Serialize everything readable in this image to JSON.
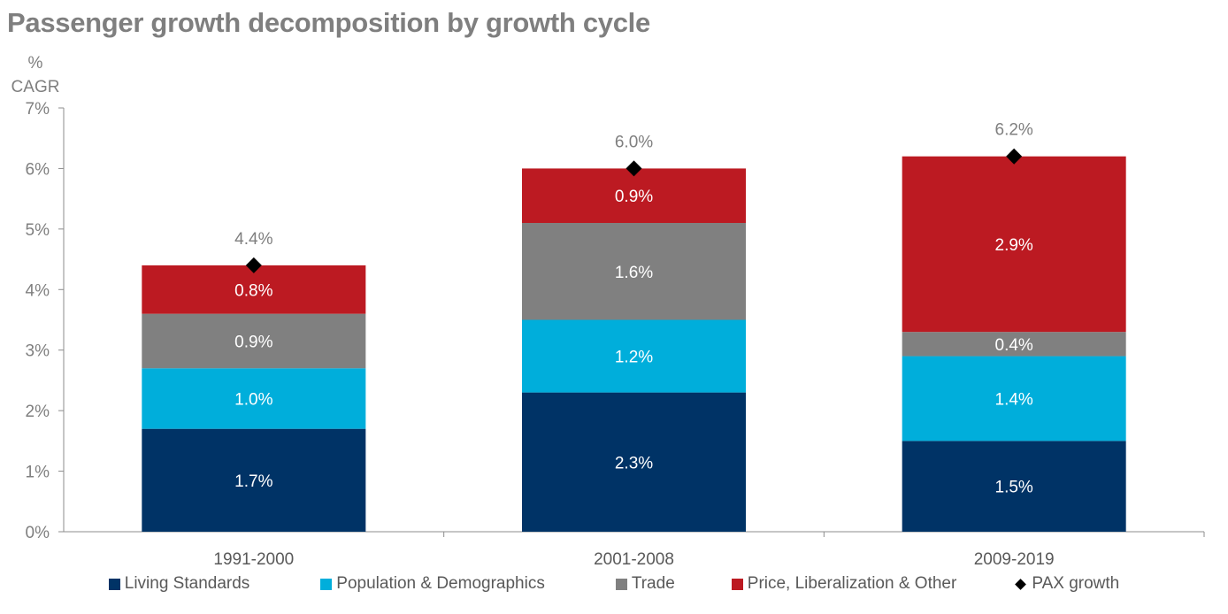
{
  "chart_data": {
    "type": "bar",
    "stacked": true,
    "title": "Passenger growth decomposition by growth cycle",
    "ylabel": "% CAGR",
    "ylabel_lines": [
      "%",
      "CAGR"
    ],
    "xlabel": "",
    "ylim": [
      0,
      7
    ],
    "yticks": [
      0,
      1,
      2,
      3,
      4,
      5,
      6,
      7
    ],
    "ytick_labels": [
      "0%",
      "1%",
      "2%",
      "3%",
      "4%",
      "5%",
      "6%",
      "7%"
    ],
    "grid": false,
    "legend_position": "bottom",
    "categories": [
      "1991-2000",
      "2001-2008",
      "2009-2019"
    ],
    "series": [
      {
        "name": "Living Standards",
        "color": "#003366",
        "values": [
          1.7,
          2.3,
          1.5
        ],
        "labels": [
          "1.7%",
          "2.3%",
          "1.5%"
        ]
      },
      {
        "name": "Population & Demographics",
        "color": "#00AEDB",
        "values": [
          1.0,
          1.2,
          1.4
        ],
        "labels": [
          "1.0%",
          "1.2%",
          "1.4%"
        ]
      },
      {
        "name": "Trade",
        "color": "#808080",
        "values": [
          0.9,
          1.6,
          0.4
        ],
        "labels": [
          "0.9%",
          "1.6%",
          "0.4%"
        ]
      },
      {
        "name": "Price, Liberalization & Other",
        "color": "#BC1A22",
        "values": [
          0.8,
          0.9,
          2.9
        ],
        "labels": [
          "0.8%",
          "0.9%",
          "2.9%"
        ]
      }
    ],
    "markers": {
      "name": "PAX growth",
      "type": "diamond",
      "color": "#000000",
      "values": [
        4.4,
        6.0,
        6.2
      ],
      "labels": [
        "4.4%",
        "6.0%",
        "6.2%"
      ]
    }
  }
}
